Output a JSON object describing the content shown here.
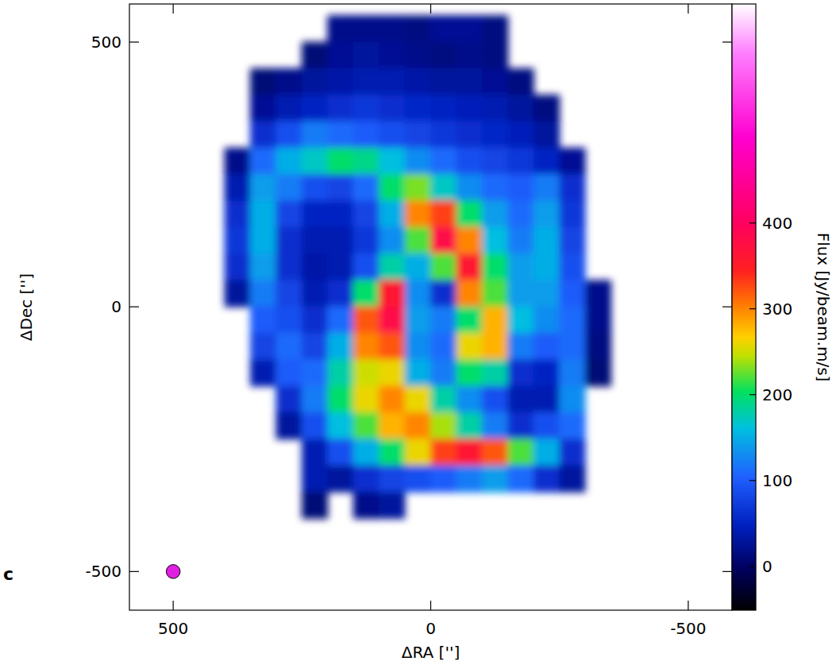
{
  "chart_data": {
    "type": "heatmap",
    "xlabel": "ΔRA ['']",
    "ylabel": "ΔDec ['']",
    "xlim": [
      585,
      -585
    ],
    "ylim": [
      -573,
      572
    ],
    "xticks": [
      500,
      0,
      -500
    ],
    "yticks": [
      -500,
      0,
      500
    ],
    "x": [
      375,
      325,
      275,
      225,
      175,
      125,
      75,
      25,
      -25,
      -75,
      -125,
      -175,
      -225,
      -275,
      -325
    ],
    "y": [
      525,
      475,
      425,
      375,
      325,
      275,
      225,
      175,
      125,
      75,
      25,
      -25,
      -75,
      -125,
      -175,
      -225,
      -275,
      -325,
      -375
    ],
    "cells": [
      [
        null,
        null,
        null,
        null,
        20,
        20,
        20,
        15,
        25,
        25,
        15,
        null,
        null,
        null,
        null
      ],
      [
        null,
        null,
        null,
        10,
        25,
        30,
        25,
        20,
        15,
        20,
        15,
        null,
        null,
        null,
        null
      ],
      [
        null,
        10,
        20,
        30,
        35,
        40,
        40,
        35,
        30,
        30,
        25,
        15,
        null,
        null,
        null
      ],
      [
        null,
        25,
        40,
        50,
        60,
        70,
        60,
        55,
        50,
        45,
        40,
        30,
        15,
        null,
        null
      ],
      [
        null,
        60,
        90,
        120,
        110,
        100,
        90,
        80,
        70,
        60,
        55,
        45,
        30,
        null,
        null
      ],
      [
        20,
        110,
        150,
        170,
        200,
        190,
        160,
        130,
        110,
        90,
        80,
        70,
        50,
        25,
        null
      ],
      [
        40,
        140,
        120,
        90,
        80,
        110,
        200,
        230,
        170,
        130,
        110,
        100,
        120,
        60,
        null
      ],
      [
        60,
        150,
        80,
        50,
        50,
        80,
        150,
        300,
        330,
        200,
        140,
        110,
        140,
        70,
        null
      ],
      [
        70,
        150,
        60,
        40,
        40,
        70,
        130,
        220,
        380,
        300,
        160,
        120,
        150,
        80,
        null
      ],
      [
        60,
        140,
        60,
        35,
        40,
        90,
        180,
        150,
        220,
        360,
        200,
        140,
        150,
        90,
        null
      ],
      [
        30,
        120,
        80,
        40,
        60,
        200,
        360,
        130,
        60,
        300,
        220,
        140,
        140,
        100,
        20
      ],
      [
        null,
        100,
        90,
        60,
        110,
        320,
        380,
        140,
        120,
        200,
        280,
        160,
        130,
        110,
        20
      ],
      [
        null,
        80,
        110,
        80,
        150,
        300,
        320,
        130,
        110,
        260,
        280,
        120,
        100,
        110,
        15
      ],
      [
        null,
        40,
        100,
        110,
        180,
        250,
        260,
        150,
        120,
        200,
        180,
        60,
        50,
        120,
        10
      ],
      [
        null,
        null,
        60,
        120,
        200,
        260,
        300,
        260,
        180,
        130,
        90,
        40,
        40,
        130,
        null
      ],
      [
        null,
        null,
        30,
        90,
        160,
        220,
        280,
        300,
        240,
        180,
        120,
        60,
        90,
        110,
        null
      ],
      [
        null,
        null,
        null,
        40,
        90,
        150,
        200,
        260,
        330,
        360,
        320,
        220,
        150,
        60,
        null
      ],
      [
        null,
        null,
        null,
        40,
        30,
        60,
        80,
        90,
        100,
        120,
        140,
        110,
        60,
        30,
        null
      ],
      [
        null,
        null,
        null,
        10,
        null,
        20,
        30,
        null,
        null,
        null,
        null,
        null,
        null,
        null,
        null
      ]
    ],
    "colorbar": {
      "label": "Flux [Jy/beam.m/s]",
      "lim": [
        -51,
        655
      ],
      "ticks": [
        0,
        100,
        200,
        300,
        400
      ]
    },
    "beam": {
      "x": 500,
      "y": -500,
      "size": 27,
      "color": "#e020e0"
    },
    "panel_label": "c"
  }
}
